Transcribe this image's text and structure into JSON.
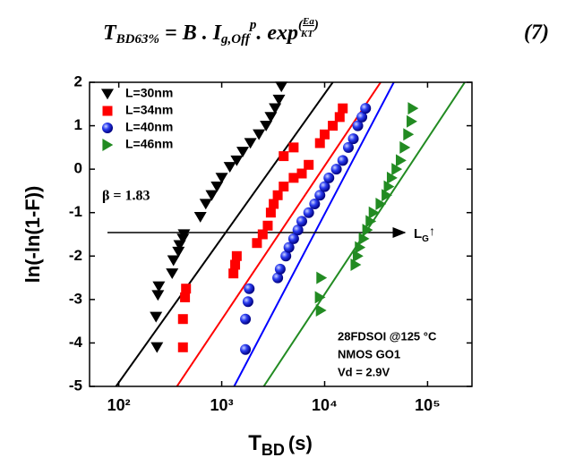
{
  "equation": {
    "parts": [
      {
        "text": "T"
      },
      {
        "text": "BD63%",
        "shift": "sub"
      },
      {
        "text": " = B . I"
      },
      {
        "text": "g,Off",
        "shift": "sub"
      },
      {
        "text": "p",
        "shift": "sup"
      },
      {
        "text": ". exp"
      },
      {
        "text": "(",
        "shift": "sup"
      },
      {
        "text": "Ea",
        "shift": "num"
      },
      {
        "text": "KT",
        "shift": "den"
      },
      {
        "text": ")",
        "shift": "sup2"
      }
    ],
    "number": "(7)"
  },
  "chart_data": {
    "type": "scatter",
    "x_scale": "log",
    "x_label": {
      "main": "T",
      "sub": "BD",
      "unit": "(s)"
    },
    "y_label": "ln(-ln(1-F))",
    "xlim": [
      52,
      270000
    ],
    "ylim": [
      -5,
      2
    ],
    "xticks": [
      {
        "value": 100,
        "label": "10²"
      },
      {
        "value": 1000,
        "label": "10³"
      },
      {
        "value": 10000,
        "label": "10⁴"
      },
      {
        "value": 100000,
        "label": "10⁵"
      }
    ],
    "yticks": [
      -5,
      -4,
      -3,
      -2,
      -1,
      0,
      1,
      2
    ],
    "legend": "top-left",
    "annotations": {
      "beta": "β = 1.83",
      "arrow_label": "L",
      "arrow_sub": "G",
      "arrow_mark": "↑",
      "conditions": [
        "28FDSOI @125 °C",
        "NMOS GO1",
        "Vd = 2.9V"
      ]
    },
    "series": [
      {
        "name": "L=30nm",
        "color": "#000000",
        "marker": "triangle-down",
        "x": [
          235,
          230,
          240,
          245,
          330,
          340,
          380,
          390,
          420,
          430,
          620,
          700,
          800,
          900,
          1000,
          1200,
          1400,
          1600,
          1900,
          2300,
          2700,
          3000,
          3300,
          3600,
          3800
        ],
        "values": [
          -4.1,
          -3.4,
          -2.9,
          -2.7,
          -2.4,
          -2.1,
          -1.9,
          -1.75,
          -1.6,
          -1.5,
          -1.1,
          -0.8,
          -0.6,
          -0.4,
          -0.2,
          0.05,
          0.2,
          0.4,
          0.6,
          0.8,
          1.0,
          1.2,
          1.4,
          1.6,
          1.9
        ],
        "fit": {
          "x": [
            94,
            12000
          ],
          "y": [
            -5,
            2
          ]
        }
      },
      {
        "name": "L=34nm",
        "color": "#ff0000",
        "marker": "square",
        "x": [
          420,
          420,
          440,
          450,
          1300,
          1350,
          1400,
          2200,
          2500,
          2800,
          3000,
          3200,
          3500,
          4000,
          5000,
          6000,
          7000,
          4000,
          5000,
          9000,
          10000,
          12000,
          14000,
          15000
        ],
        "values": [
          -4.1,
          -3.45,
          -2.95,
          -2.75,
          -2.4,
          -2.2,
          -2.0,
          -1.7,
          -1.5,
          -1.3,
          -1.0,
          -0.8,
          -0.6,
          -0.4,
          -0.2,
          -0.1,
          0.1,
          0.3,
          0.5,
          0.6,
          0.8,
          1.0,
          1.2,
          1.4
        ],
        "fit": {
          "x": [
            367,
            35000
          ],
          "y": [
            -5,
            2
          ]
        }
      },
      {
        "name": "L=40nm",
        "color": "#0000ff",
        "marker": "sphere",
        "x": [
          1700,
          1700,
          1800,
          1850,
          3500,
          3700,
          4200,
          4500,
          5000,
          5500,
          6000,
          7000,
          8000,
          9000,
          10000,
          11000,
          13000,
          15000,
          17000,
          19000,
          21000,
          23000,
          25000
        ],
        "values": [
          -4.15,
          -3.45,
          -3.05,
          -2.75,
          -2.5,
          -2.3,
          -2.0,
          -1.8,
          -1.6,
          -1.4,
          -1.2,
          -1.0,
          -0.8,
          -0.6,
          -0.4,
          -0.2,
          0,
          0.2,
          0.5,
          0.7,
          1.0,
          1.2,
          1.4
        ],
        "fit": {
          "x": [
            1320,
            47000
          ],
          "y": [
            -5,
            2
          ]
        }
      },
      {
        "name": "L=46nm",
        "color": "#228b22",
        "marker": "triangle-right",
        "x": [
          9200,
          9000,
          9300,
          20000,
          21000,
          22000,
          24000,
          26000,
          28000,
          30000,
          35000,
          40000,
          42000,
          45000,
          50000,
          55000,
          60000,
          65000,
          70000,
          72000
        ],
        "values": [
          -3.25,
          -2.95,
          -2.5,
          -2.2,
          -2.0,
          -1.8,
          -1.6,
          -1.4,
          -1.2,
          -1.0,
          -0.8,
          -0.6,
          -0.4,
          -0.2,
          0,
          0.2,
          0.5,
          0.8,
          1.1,
          1.4
        ],
        "fit": {
          "x": [
            2560,
            230000
          ],
          "y": [
            -5,
            2
          ]
        }
      }
    ]
  }
}
